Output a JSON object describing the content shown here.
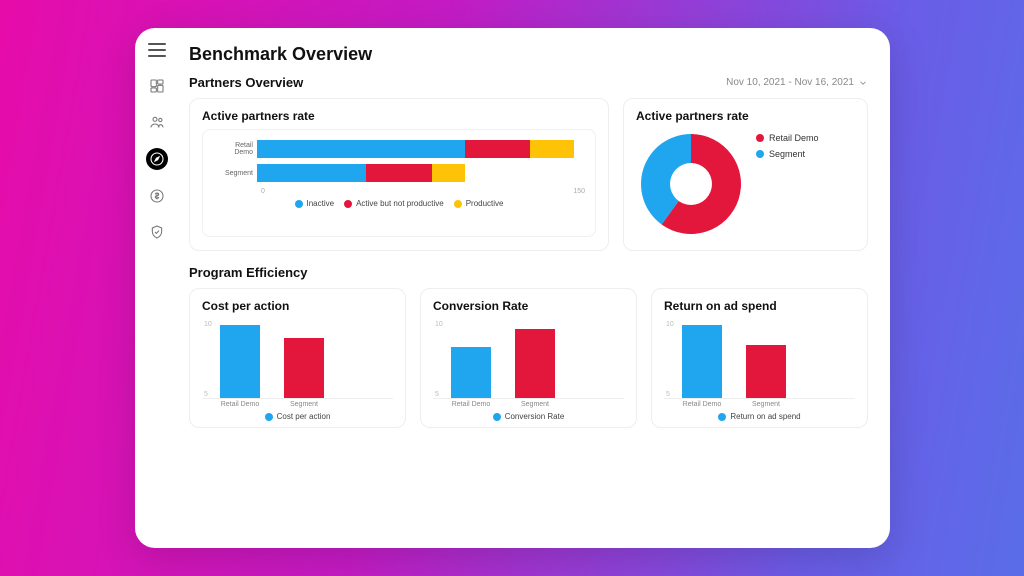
{
  "colors": {
    "blue": "#1fa6ee",
    "red": "#e3163c",
    "yellow": "#fec307",
    "grid": "#eeeeee",
    "text_muted": "#888888"
  },
  "header": {
    "title": "Benchmark Overview"
  },
  "date_range": "Nov 10, 2021 - Nov 16, 2021",
  "sections": {
    "partners": {
      "title": "Partners Overview"
    },
    "efficiency": {
      "title": "Program Efficiency"
    }
  },
  "stacked_chart": {
    "title": "Active partners rate",
    "type": "stacked-horizontal-bar",
    "x_max": 150,
    "x_ticks": [
      0,
      150
    ],
    "legend": [
      {
        "label": "Inactive",
        "color": "#1fa6ee"
      },
      {
        "label": "Active but not productive",
        "color": "#e3163c"
      },
      {
        "label": "Productive",
        "color": "#fec307"
      }
    ],
    "rows": [
      {
        "label": "Retail Demo",
        "segments": [
          {
            "value": 95,
            "color": "#1fa6ee"
          },
          {
            "value": 30,
            "color": "#e3163c"
          },
          {
            "value": 20,
            "color": "#fec307"
          }
        ]
      },
      {
        "label": "Segment",
        "segments": [
          {
            "value": 50,
            "color": "#1fa6ee"
          },
          {
            "value": 30,
            "color": "#e3163c"
          },
          {
            "value": 15,
            "color": "#fec307"
          }
        ]
      }
    ]
  },
  "donut_chart": {
    "title": "Active partners rate",
    "type": "donut",
    "hole": 0.42,
    "legend": [
      {
        "label": "Retail Demo",
        "color": "#e3163c"
      },
      {
        "label": "Segment",
        "color": "#1fa6ee"
      }
    ],
    "slices": [
      {
        "label": "Retail Demo",
        "value": 60,
        "color": "#e3163c"
      },
      {
        "label": "Segment",
        "value": 40,
        "color": "#1fa6ee"
      }
    ]
  },
  "mini_charts": [
    {
      "title": "Cost per action",
      "legend_label": "Cost per action",
      "legend_color": "#1fa6ee",
      "ylim": [
        0,
        12
      ],
      "yticks": [
        5,
        10
      ],
      "bars": [
        {
          "label": "Retail Demo",
          "value": 11,
          "color": "#1fa6ee"
        },
        {
          "label": "Segment",
          "value": 9,
          "color": "#e3163c"
        }
      ]
    },
    {
      "title": "Conversion Rate",
      "legend_label": "Conversion Rate",
      "legend_color": "#1fa6ee",
      "ylim": [
        0,
        14
      ],
      "yticks": [
        5,
        10
      ],
      "bars": [
        {
          "label": "Retail Demo",
          "value": 9,
          "color": "#1fa6ee"
        },
        {
          "label": "Segment",
          "value": 12,
          "color": "#e3163c"
        }
      ]
    },
    {
      "title": "Return on ad spend",
      "legend_label": "Return on ad spend",
      "legend_color": "#1fa6ee",
      "ylim": [
        0,
        12
      ],
      "yticks": [
        5,
        10
      ],
      "bars": [
        {
          "label": "Retail Demo",
          "value": 11,
          "color": "#1fa6ee"
        },
        {
          "label": "Segment",
          "value": 8,
          "color": "#e3163c"
        }
      ]
    }
  ],
  "sidebar": {
    "items": [
      {
        "name": "menu-icon",
        "active": false
      },
      {
        "name": "dashboard-icon",
        "active": false
      },
      {
        "name": "people-icon",
        "active": false
      },
      {
        "name": "compass-icon",
        "active": true
      },
      {
        "name": "dollar-icon",
        "active": false
      },
      {
        "name": "shield-icon",
        "active": false
      }
    ]
  }
}
